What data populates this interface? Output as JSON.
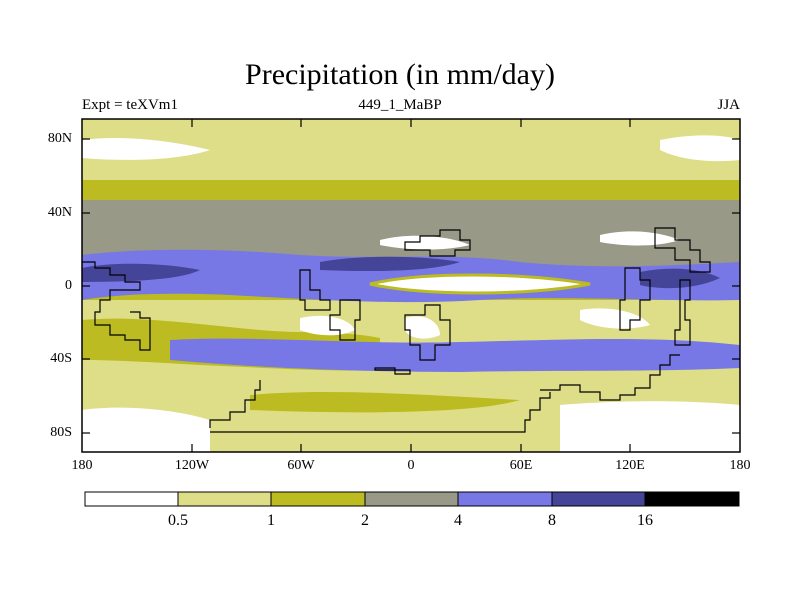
{
  "title": "Precipitation (in mm/day)",
  "subtitle_left": "Expt = teXVm1",
  "subtitle_center": "449_1_MaBP",
  "subtitle_right": "JJA",
  "lat_labels": [
    "80N",
    "40N",
    "0",
    "40S",
    "80S"
  ],
  "lon_labels": [
    "180",
    "120W",
    "60W",
    "0",
    "60E",
    "120E",
    "180"
  ],
  "colorbar": {
    "labels": [
      "0.5",
      "1",
      "2",
      "4",
      "8",
      "16"
    ],
    "colors": [
      "#ffffff",
      "#dede88",
      "#bcbc22",
      "#999988",
      "#7777e6",
      "#444499",
      "#000000"
    ]
  },
  "colors": {
    "white": "#ffffff",
    "light_yellow": "#dede88",
    "olive": "#bcbc22",
    "gray": "#999988",
    "light_blue": "#7777e6",
    "dark_blue": "#444499",
    "black": "#000000"
  }
}
